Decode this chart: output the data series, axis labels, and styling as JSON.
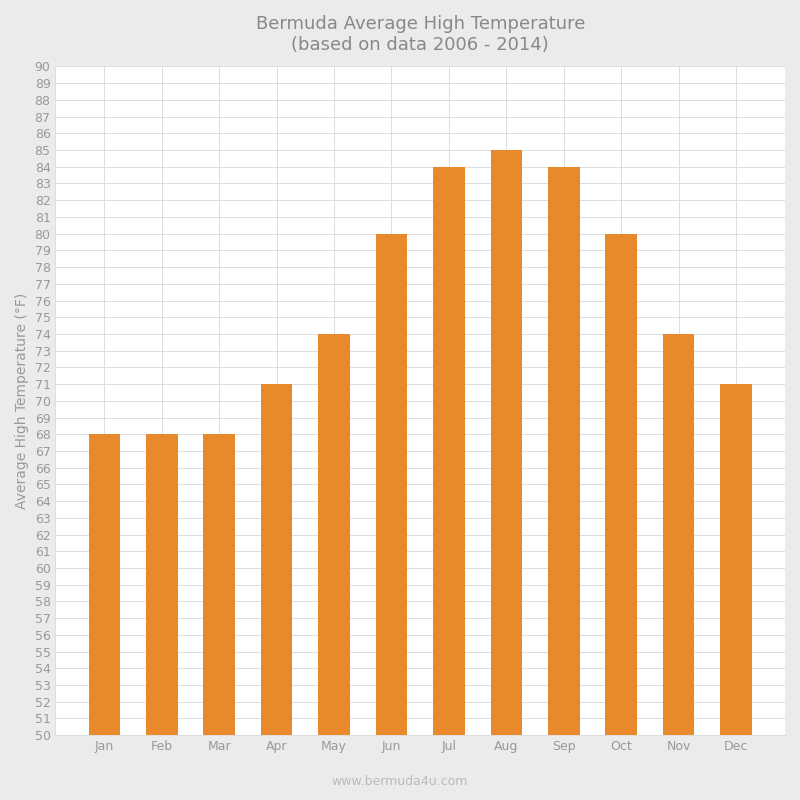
{
  "title": "Bermuda Average High Temperature\n(based on data 2006 - 2014)",
  "ylabel": "Average High Temperature (°F)",
  "watermark": "www.bermuda4u.com",
  "categories": [
    "Jan",
    "Feb",
    "Mar",
    "Apr",
    "May",
    "Jun",
    "Jul",
    "Aug",
    "Sep",
    "Oct",
    "Nov",
    "Dec"
  ],
  "values": [
    68,
    68,
    68,
    71,
    74,
    80,
    84,
    85,
    84,
    80,
    74,
    71
  ],
  "bar_color": "#E8892B",
  "ylim": [
    50,
    90
  ],
  "background_color": "#EBEBEB",
  "plot_background_color": "#FFFFFF",
  "grid_color": "#DDDDDD",
  "title_fontsize": 13,
  "axis_label_fontsize": 10,
  "tick_fontsize": 9,
  "watermark_fontsize": 9,
  "bar_width": 0.55,
  "title_color": "#888888",
  "label_color": "#999999",
  "tick_color": "#999999",
  "watermark_color": "#BBBBBB"
}
